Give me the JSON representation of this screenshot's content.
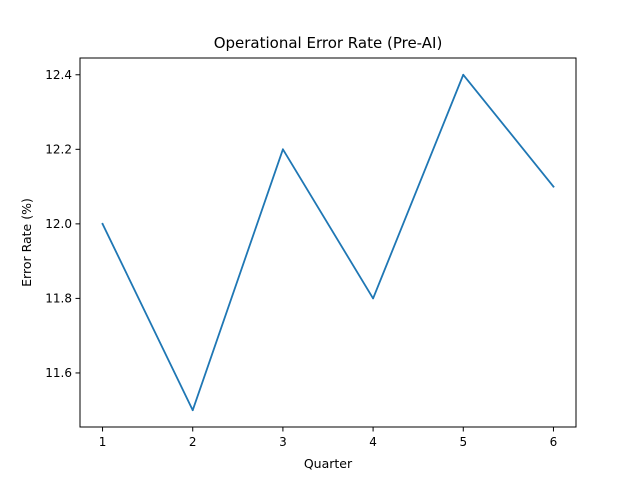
{
  "chart_data": {
    "type": "line",
    "title": "Operational Error Rate (Pre-AI)",
    "xlabel": "Quarter",
    "ylabel": "Error Rate (%)",
    "x": [
      1,
      2,
      3,
      4,
      5,
      6
    ],
    "series": [
      {
        "values": [
          12.0,
          11.5,
          12.2,
          11.8,
          12.4,
          12.1
        ]
      }
    ],
    "xticks": [
      "1",
      "2",
      "3",
      "4",
      "5",
      "6"
    ],
    "yticks": [
      "11.6",
      "11.8",
      "12.0",
      "12.2",
      "12.4"
    ],
    "xlim": [
      0.75,
      6.25
    ],
    "ylim": [
      11.455,
      12.445
    ],
    "grid": false,
    "line_color": "#1f77b4"
  }
}
